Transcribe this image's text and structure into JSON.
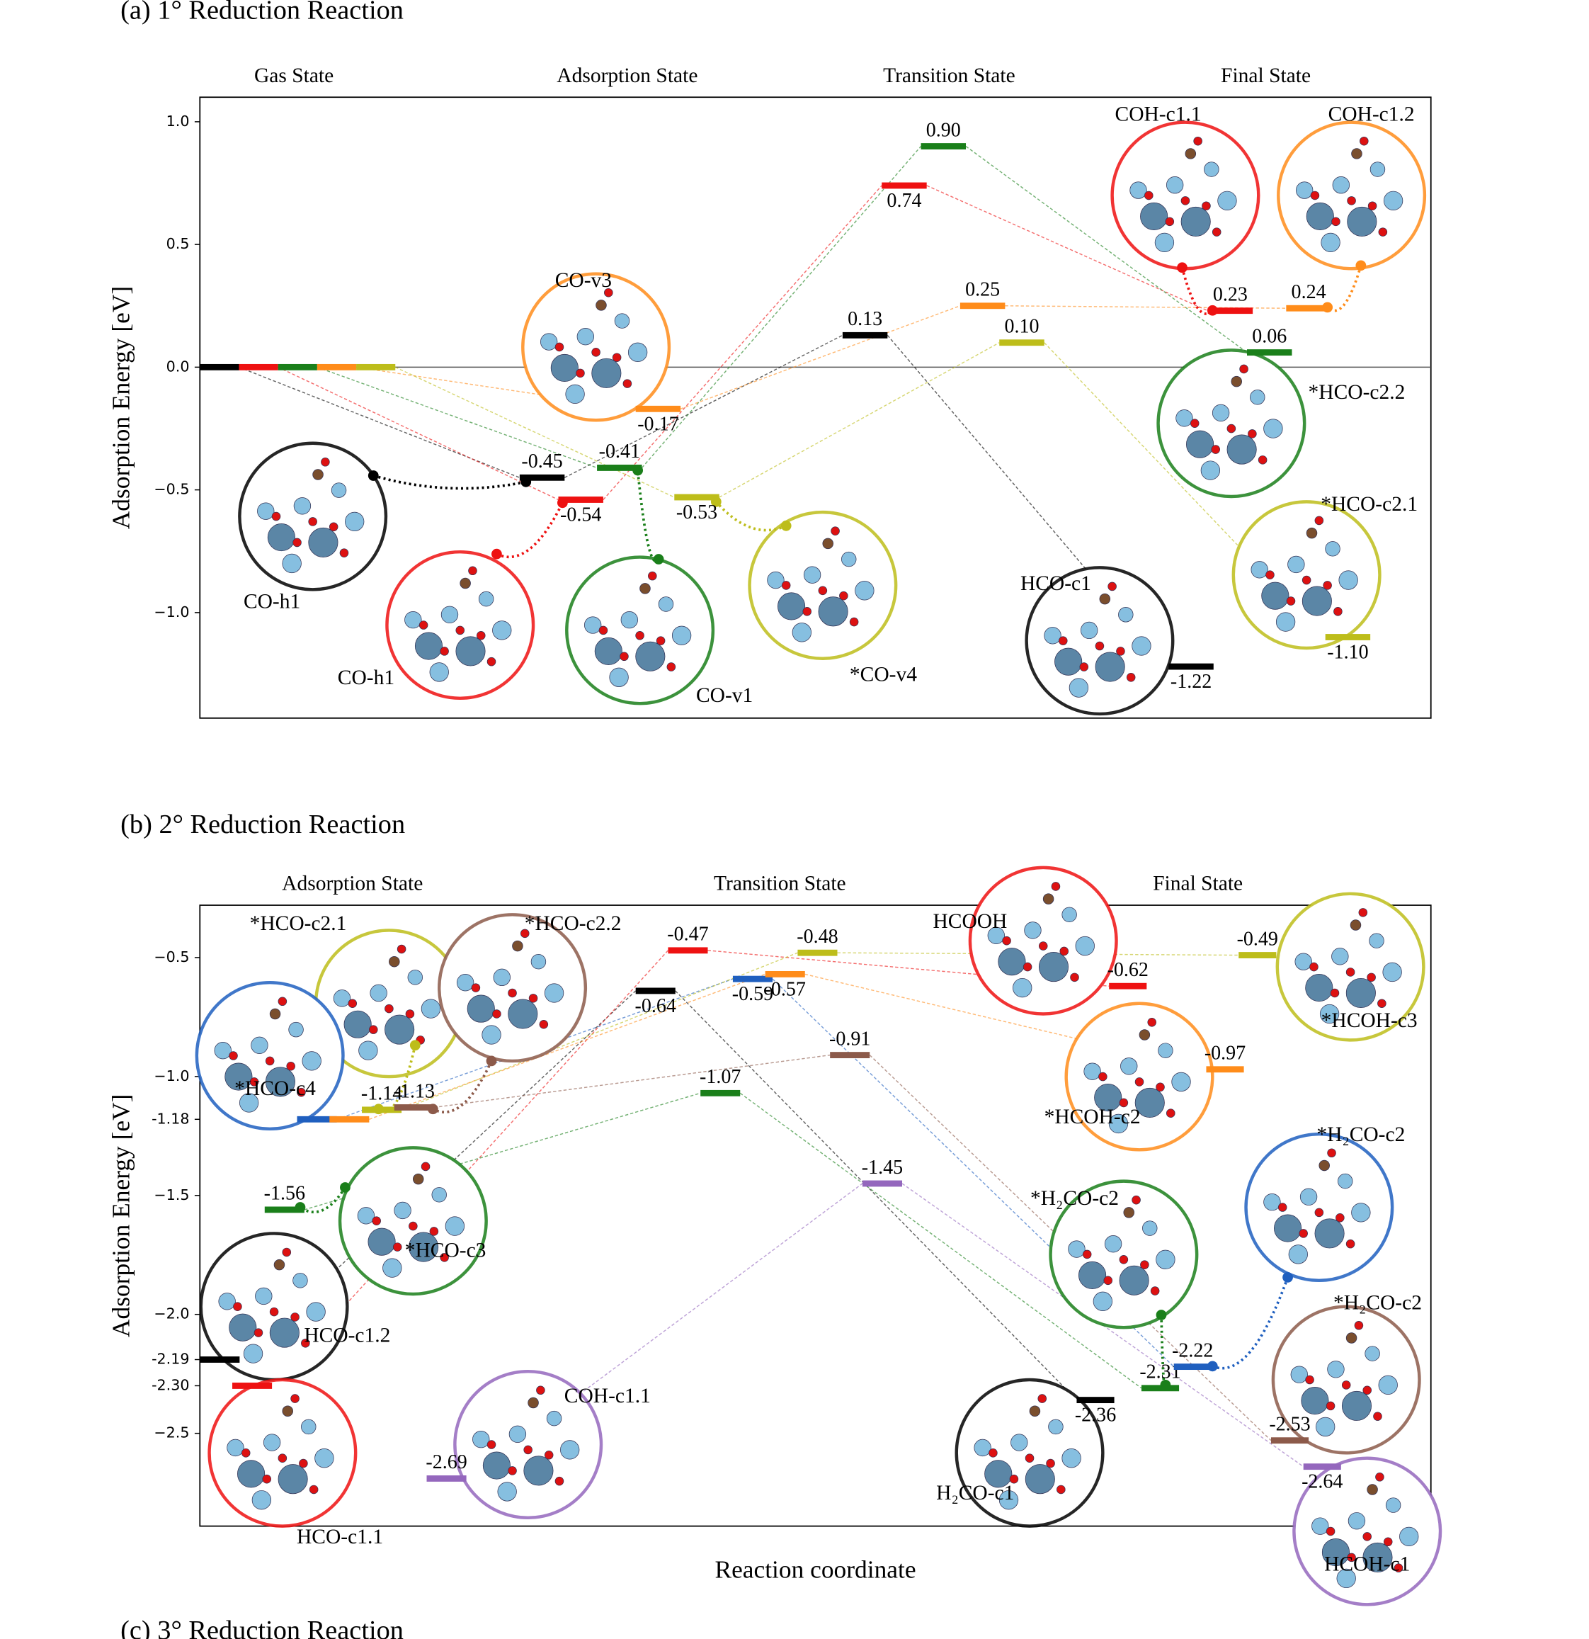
{
  "chart_data": [
    {
      "type": "energy_diagram",
      "title": "(a) 1° Reduction Reaction",
      "stages": [
        "Gas State",
        "Adsorption State",
        "Transition State",
        "Final State"
      ],
      "ylabel": "Adsorption Energy [eV]",
      "ylim": [
        -1.43,
        1.1
      ],
      "yticks": [
        {
          "value": 1,
          "label": "1.0"
        },
        0.5,
        {
          "value": 0,
          "label": "0.0"
        },
        {
          "value": -0.5,
          "label": "−0.5"
        },
        {
          "value": -1,
          "label": "−1.0"
        }
      ],
      "series": [
        {
          "color": "#000000",
          "values": [
            0,
            -0.45,
            0.13,
            -1.22
          ],
          "value_labels": [
            null,
            "-0.45",
            "0.13",
            "-1.22"
          ]
        },
        {
          "color": "#ee1111",
          "values": [
            0,
            -0.54,
            0.74,
            0.23
          ],
          "value_labels": [
            null,
            "-0.54",
            "0.74",
            "0.23"
          ]
        },
        {
          "color": "#1a7f1a",
          "values": [
            0,
            -0.41,
            0.9,
            0.06
          ],
          "value_labels": [
            null,
            "-0.41",
            "0.90",
            "0.06"
          ]
        },
        {
          "color": "#ff8c1a",
          "values": [
            0,
            -0.17,
            0.25,
            0.24
          ],
          "value_labels": [
            null,
            "-0.17",
            "0.25",
            "0.24"
          ]
        },
        {
          "color": "#bdbd1a",
          "values": [
            0,
            -0.53,
            0.1,
            -1.1
          ],
          "value_labels": [
            null,
            "-0.53",
            "0.10",
            "-1.10"
          ]
        }
      ],
      "annotations": [
        "CO-h1",
        "CO-h1",
        "CO-v1",
        "CO-v3",
        "*CO-v4",
        "HCO-c1",
        "COH-c1.1",
        "COH-c1.2",
        "*HCO-c2.2",
        "*HCO-c2.1"
      ]
    },
    {
      "type": "energy_diagram",
      "title": "(b) 2° Reduction Reaction",
      "stages": [
        "Adsorption State",
        "Transition State",
        "Final State"
      ],
      "ylabel": "Adsorption Energy [eV]",
      "xlabel": "Reaction coordinate",
      "ylim": [
        -2.89,
        -0.28
      ],
      "yticks": [
        {
          "value": -0.5,
          "label": "−0.5"
        },
        {
          "value": -1,
          "label": "−1.0"
        },
        {
          "value": -1.18,
          "label": "-1.18"
        },
        {
          "value": -1.5,
          "label": "−1.5"
        },
        {
          "value": -2,
          "label": "−2.0"
        },
        {
          "value": -2.19,
          "label": "-2.19"
        },
        {
          "value": -2.3,
          "label": "-2.30"
        },
        {
          "value": -2.5,
          "label": "−2.5"
        }
      ],
      "series": [
        {
          "color": "#000000",
          "values": [
            -2.19,
            -0.64,
            -2.36
          ],
          "value_labels": [
            null,
            "-0.64",
            "-2.36"
          ]
        },
        {
          "color": "#ee1111",
          "values": [
            -2.3,
            -0.47,
            -0.62
          ],
          "value_labels": [
            null,
            "-0.47",
            "-0.62"
          ]
        },
        {
          "color": "#1a7f1a",
          "values": [
            -1.56,
            -1.07,
            -2.31
          ],
          "value_labels": [
            "-1.56",
            "-1.07",
            "-2.31"
          ]
        },
        {
          "color": "#1f5fbf",
          "values": [
            -1.18,
            -0.59,
            -2.22
          ],
          "value_labels": [
            null,
            "-0.59",
            "-2.22"
          ]
        },
        {
          "color": "#ff8c1a",
          "values": [
            -1.18,
            -0.57,
            -0.97
          ],
          "value_labels": [
            null,
            "-0.57",
            "-0.97"
          ]
        },
        {
          "color": "#bdbd1a",
          "values": [
            -1.14,
            -0.48,
            -0.49
          ],
          "value_labels": [
            "-1.14",
            "-0.48",
            "-0.49"
          ]
        },
        {
          "color": "#8c5a4a",
          "values": [
            -1.13,
            -0.91,
            -2.53
          ],
          "value_labels": [
            "-1.13",
            "-0.91",
            "-2.53"
          ]
        },
        {
          "color": "#9467bd",
          "values": [
            -2.69,
            -1.45,
            -2.64
          ],
          "value_labels": [
            "-2.69",
            "-1.45",
            "-2.64"
          ]
        }
      ],
      "annotations": [
        "*HCO-c2.1",
        "*HCO-c2.2",
        "*HCO-c4",
        "*HCO-c3",
        "HCO-c1.2",
        "HCO-c1.1",
        "COH-c1.1",
        "HCOOH",
        "*HCOH-c2",
        "*HCOH-c3",
        "*H₂CO-c2",
        "*H₂CO-c2",
        "*H₂CO-c2",
        "H₂CO-c1",
        "HCOH-c1"
      ]
    },
    {
      "title": "(c) 3° Reduction Reaction"
    }
  ]
}
